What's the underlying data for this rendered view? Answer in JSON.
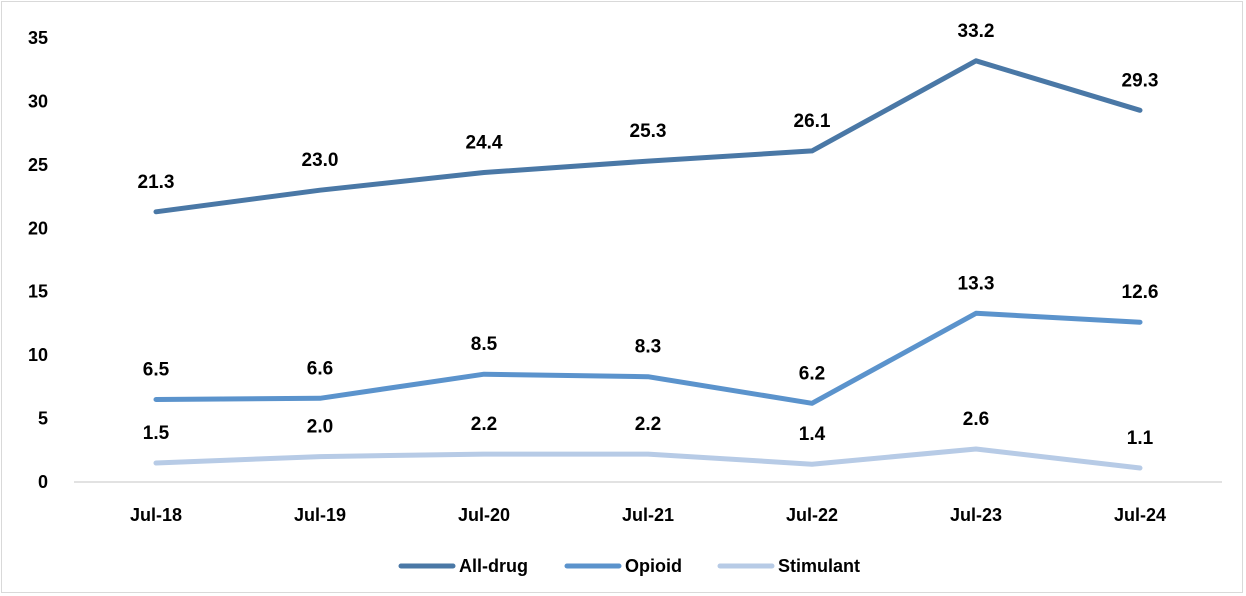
{
  "chart_data": {
    "type": "line",
    "title": "",
    "xlabel": "",
    "ylabel": "",
    "categories": [
      "Jul-18",
      "Jul-19",
      "Jul-20",
      "Jul-21",
      "Jul-22",
      "Jul-23",
      "Jul-24"
    ],
    "ylim": [
      0,
      35
    ],
    "yticks": [
      "0",
      "5",
      "10",
      "15",
      "20",
      "25",
      "30",
      "35"
    ],
    "grid": false,
    "legend_position": "bottom",
    "series": [
      {
        "name": "All-drug",
        "color": "#4a78a6",
        "values": [
          21.3,
          23.0,
          24.4,
          25.3,
          26.1,
          33.2,
          29.3
        ],
        "labels": [
          "21.3",
          "23.0",
          "24.4",
          "25.3",
          "26.1",
          "33.2",
          "29.3"
        ]
      },
      {
        "name": "Opioid",
        "color": "#5b93cc",
        "values": [
          6.5,
          6.6,
          8.5,
          8.3,
          6.2,
          13.3,
          12.6
        ],
        "labels": [
          "6.5",
          "6.6",
          "8.5",
          "8.3",
          "6.2",
          "13.3",
          "12.6"
        ]
      },
      {
        "name": "Stimulant",
        "color": "#b7cbe6",
        "values": [
          1.5,
          2.0,
          2.2,
          2.2,
          1.4,
          2.6,
          1.1
        ],
        "labels": [
          "1.5",
          "2.0",
          "2.2",
          "2.2",
          "1.4",
          "2.6",
          "1.1"
        ]
      }
    ]
  }
}
